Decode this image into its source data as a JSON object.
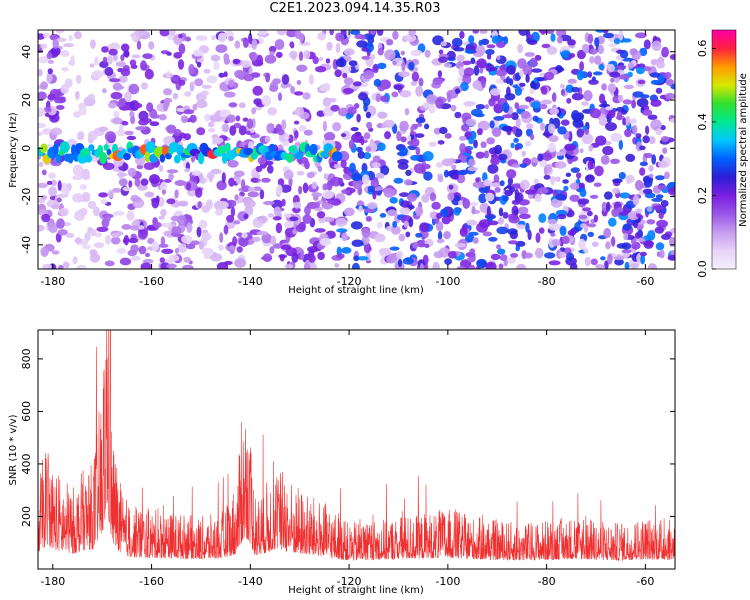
{
  "title": "C2E1.2023.094.14.35.R03",
  "colors": {
    "snr_line": "#f03030",
    "colormap": [
      "#f5f0fb",
      "#e6d2f7",
      "#c79cf0",
      "#9a55e6",
      "#7a1fe0",
      "#2b1ed6",
      "#0060ff",
      "#00c8ff",
      "#00e890",
      "#30e030",
      "#d8e800",
      "#ff9a00",
      "#ff2040",
      "#ff00a8"
    ]
  },
  "chart_data": [
    {
      "type": "heatmap",
      "title": "C2E1.2023.094.14.35.R03",
      "xlabel": "Height of straight line (km)",
      "ylabel": "Frequency (Hz)",
      "xlim": [
        -183,
        -54
      ],
      "ylim": [
        -50,
        49
      ],
      "xticks": [
        -180,
        -160,
        -140,
        -120,
        -100,
        -80,
        -60
      ],
      "yticks": [
        -40,
        -20,
        0,
        20,
        40
      ],
      "colorbar": {
        "label": "Normalized spectral amplitude",
        "range": [
          0,
          0.65
        ],
        "ticks": [
          "0.0",
          "0.2",
          "0.4",
          "0.6"
        ]
      },
      "strong_band": {
        "x_range": [
          -183,
          -122
        ],
        "frequency_center": -2,
        "peak_amplitude": 0.6
      }
    },
    {
      "type": "line",
      "xlabel": "Height of straight line (km)",
      "ylabel": "SNR (10 * v/v)",
      "xlim": [
        -183,
        -54
      ],
      "ylim": [
        0,
        910
      ],
      "xticks": [
        -180,
        -160,
        -140,
        -120,
        -100,
        -80,
        -60
      ],
      "yticks": [
        200,
        400,
        600,
        800
      ],
      "series": [
        {
          "x": [
            -183,
            -181,
            -180,
            -178,
            -176,
            -174,
            -172,
            -170,
            -169,
            -168,
            -166,
            -164,
            -160,
            -155,
            -150,
            -146,
            -143,
            -141,
            -140,
            -139,
            -137,
            -135,
            -132,
            -130,
            -128,
            -125,
            -122,
            -120,
            -115,
            -110,
            -105,
            -100,
            -95,
            -90,
            -85,
            -80,
            -75,
            -70,
            -65,
            -60,
            -55,
            -54
          ],
          "values": [
            250,
            380,
            300,
            260,
            230,
            280,
            300,
            520,
            900,
            400,
            220,
            180,
            170,
            160,
            150,
            160,
            220,
            500,
            380,
            200,
            240,
            300,
            260,
            230,
            210,
            190,
            150,
            130,
            140,
            150,
            160,
            170,
            150,
            140,
            130,
            140,
            150,
            140,
            130,
            150,
            140,
            150
          ]
        }
      ]
    }
  ]
}
